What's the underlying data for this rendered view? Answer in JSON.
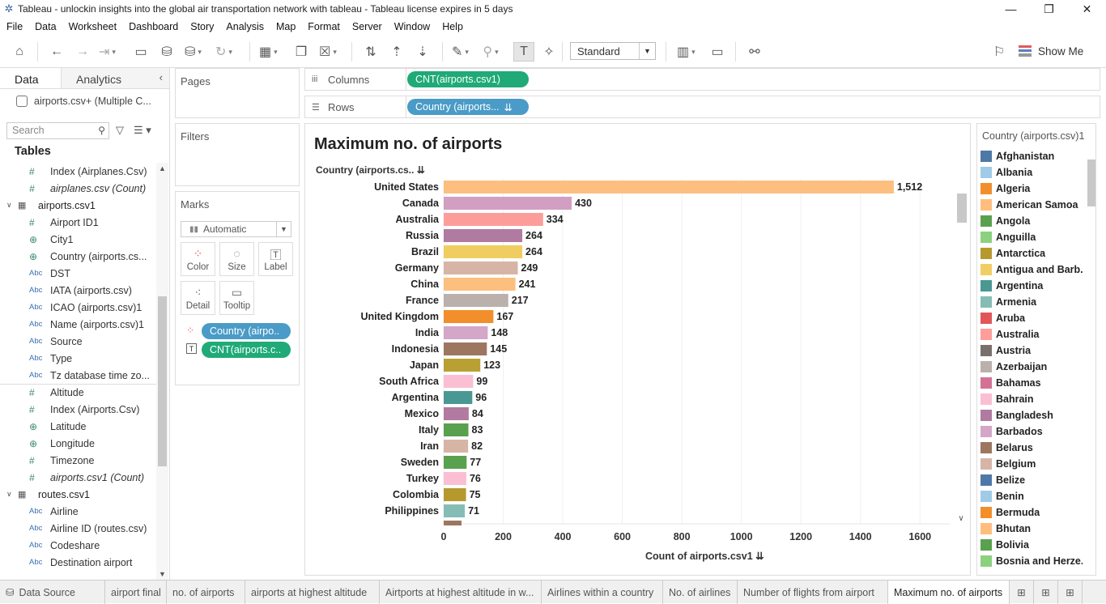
{
  "window": {
    "title": "Tableau - unlockin insights into the global air transportation network with tableau - Tableau license expires in 5 days"
  },
  "menu": [
    "File",
    "Data",
    "Worksheet",
    "Dashboard",
    "Story",
    "Analysis",
    "Map",
    "Format",
    "Server",
    "Window",
    "Help"
  ],
  "toolbar": {
    "fit_label": "Standard",
    "show_me_label": "Show Me"
  },
  "left": {
    "tab_data": "Data",
    "tab_analytics": "Analytics",
    "datasource": "airports.csv+ (Multiple C...",
    "search_placeholder": "Search",
    "tables_header": "Tables",
    "fields": [
      {
        "kind": "num",
        "label": "Index (Airplanes.Csv)"
      },
      {
        "kind": "num",
        "label": "airplanes.csv (Count)",
        "italic": true
      },
      {
        "kind": "group",
        "label": "airports.csv1"
      },
      {
        "kind": "num",
        "label": "Airport ID1"
      },
      {
        "kind": "geo",
        "label": "City1"
      },
      {
        "kind": "geo",
        "label": "Country (airports.cs..."
      },
      {
        "kind": "abc",
        "label": "DST"
      },
      {
        "kind": "abc",
        "label": "IATA (airports.csv)"
      },
      {
        "kind": "abc",
        "label": "ICAO (airports.csv)1"
      },
      {
        "kind": "abc",
        "label": "Name (airports.csv)1"
      },
      {
        "kind": "abc",
        "label": "Source"
      },
      {
        "kind": "abc",
        "label": "Type"
      },
      {
        "kind": "abc",
        "label": "Tz database time zo..."
      },
      {
        "kind": "num",
        "label": "Altitude",
        "sep": true
      },
      {
        "kind": "num",
        "label": "Index (Airports.Csv)"
      },
      {
        "kind": "geo",
        "label": "Latitude"
      },
      {
        "kind": "geo",
        "label": "Longitude"
      },
      {
        "kind": "num",
        "label": "Timezone"
      },
      {
        "kind": "num",
        "label": "airports.csv1 (Count)",
        "italic": true
      },
      {
        "kind": "group",
        "label": "routes.csv1"
      },
      {
        "kind": "abc",
        "label": "Airline"
      },
      {
        "kind": "abc",
        "label": "Airline ID (routes.csv)"
      },
      {
        "kind": "abc",
        "label": "Codeshare"
      },
      {
        "kind": "abc",
        "label": "Destination airport"
      }
    ]
  },
  "pages_label": "Pages",
  "filters_label": "Filters",
  "marks": {
    "label": "Marks",
    "type": "Automatic",
    "buttons": [
      "Color",
      "Size",
      "Label",
      "Detail",
      "Tooltip"
    ],
    "pill_color": "Country (airpo..",
    "pill_label": "CNT(airports.c.."
  },
  "shelves": {
    "columns_label": "Columns",
    "columns_pill": "CNT(airports.csv1)",
    "rows_label": "Rows",
    "rows_pill": "Country (airports..."
  },
  "viz": {
    "title": "Maximum no. of airports",
    "row_header": "Country (airports.cs..",
    "x_title": "Count of airports.csv1"
  },
  "chart_data": {
    "type": "bar",
    "orientation": "horizontal",
    "title": "Maximum no. of airports",
    "xlabel": "Count of airports.csv1",
    "ylabel": "Country (airports.cs..",
    "xlim": [
      0,
      1700
    ],
    "x_ticks": [
      0,
      200,
      400,
      600,
      800,
      1000,
      1200,
      1400,
      1600
    ],
    "grid": true,
    "categories": [
      "United States",
      "Canada",
      "Australia",
      "Russia",
      "Brazil",
      "Germany",
      "China",
      "France",
      "United Kingdom",
      "India",
      "Indonesia",
      "Japan",
      "South Africa",
      "Argentina",
      "Mexico",
      "Italy",
      "Iran",
      "Sweden",
      "Turkey",
      "Colombia",
      "Philippines"
    ],
    "values": [
      1512,
      430,
      334,
      264,
      264,
      249,
      241,
      217,
      167,
      148,
      145,
      123,
      99,
      96,
      84,
      83,
      82,
      77,
      76,
      75,
      71
    ],
    "labels": [
      "1,512",
      "430",
      "334",
      "264",
      "264",
      "249",
      "241",
      "217",
      "167",
      "148",
      "145",
      "123",
      "99",
      "96",
      "84",
      "83",
      "82",
      "77",
      "76",
      "75",
      "71"
    ],
    "colors": [
      "#fdbf80",
      "#d29fc3",
      "#fd9d9a",
      "#b07aa1",
      "#f0cd60",
      "#d7b5a6",
      "#fcbf7e",
      "#bab0ac",
      "#f28e2b",
      "#d4a6c8",
      "#9d7660",
      "#b9a032",
      "#fabfd2",
      "#499894",
      "#b07aa1",
      "#59a14f",
      "#d7b5a6",
      "#59a14f",
      "#fabfd2",
      "#b6992d",
      "#86bcb6"
    ]
  },
  "legend": {
    "title": "Country (airports.csv)1",
    "items": [
      {
        "label": "Afghanistan",
        "color": "#4e79a7"
      },
      {
        "label": "Albania",
        "color": "#a0cbe8"
      },
      {
        "label": "Algeria",
        "color": "#f28e2b"
      },
      {
        "label": "American Samoa",
        "color": "#ffbe7d"
      },
      {
        "label": "Angola",
        "color": "#59a14f"
      },
      {
        "label": "Anguilla",
        "color": "#8cd17d"
      },
      {
        "label": "Antarctica",
        "color": "#b6992d"
      },
      {
        "label": "Antigua and Barb..",
        "color": "#f1ce63"
      },
      {
        "label": "Argentina",
        "color": "#499894"
      },
      {
        "label": "Armenia",
        "color": "#86bcb6"
      },
      {
        "label": "Aruba",
        "color": "#e15759"
      },
      {
        "label": "Australia",
        "color": "#ff9d9a"
      },
      {
        "label": "Austria",
        "color": "#79706e"
      },
      {
        "label": "Azerbaijan",
        "color": "#bab0ac"
      },
      {
        "label": "Bahamas",
        "color": "#d37295"
      },
      {
        "label": "Bahrain",
        "color": "#fabfd2"
      },
      {
        "label": "Bangladesh",
        "color": "#b07aa1"
      },
      {
        "label": "Barbados",
        "color": "#d4a6c8"
      },
      {
        "label": "Belarus",
        "color": "#9d7660"
      },
      {
        "label": "Belgium",
        "color": "#d7b5a6"
      },
      {
        "label": "Belize",
        "color": "#4e79a7"
      },
      {
        "label": "Benin",
        "color": "#a0cbe8"
      },
      {
        "label": "Bermuda",
        "color": "#f28e2b"
      },
      {
        "label": "Bhutan",
        "color": "#ffbe7d"
      },
      {
        "label": "Bolivia",
        "color": "#59a14f"
      },
      {
        "label": "Bosnia and Herze..",
        "color": "#8cd17d"
      }
    ]
  },
  "sheet_tabs": [
    {
      "label": "Data Source",
      "active": false
    },
    {
      "label": "airport final",
      "active": false
    },
    {
      "label": "no. of airports",
      "active": false
    },
    {
      "label": "airports at highest altitude",
      "active": false
    },
    {
      "label": "Airtports at highest altitude in w...",
      "active": false
    },
    {
      "label": "Airlines within a country",
      "active": false
    },
    {
      "label": "No. of airlines",
      "active": false
    },
    {
      "label": "Number of flights from airport",
      "active": false
    },
    {
      "label": "Maximum no. of airports",
      "active": true
    }
  ]
}
